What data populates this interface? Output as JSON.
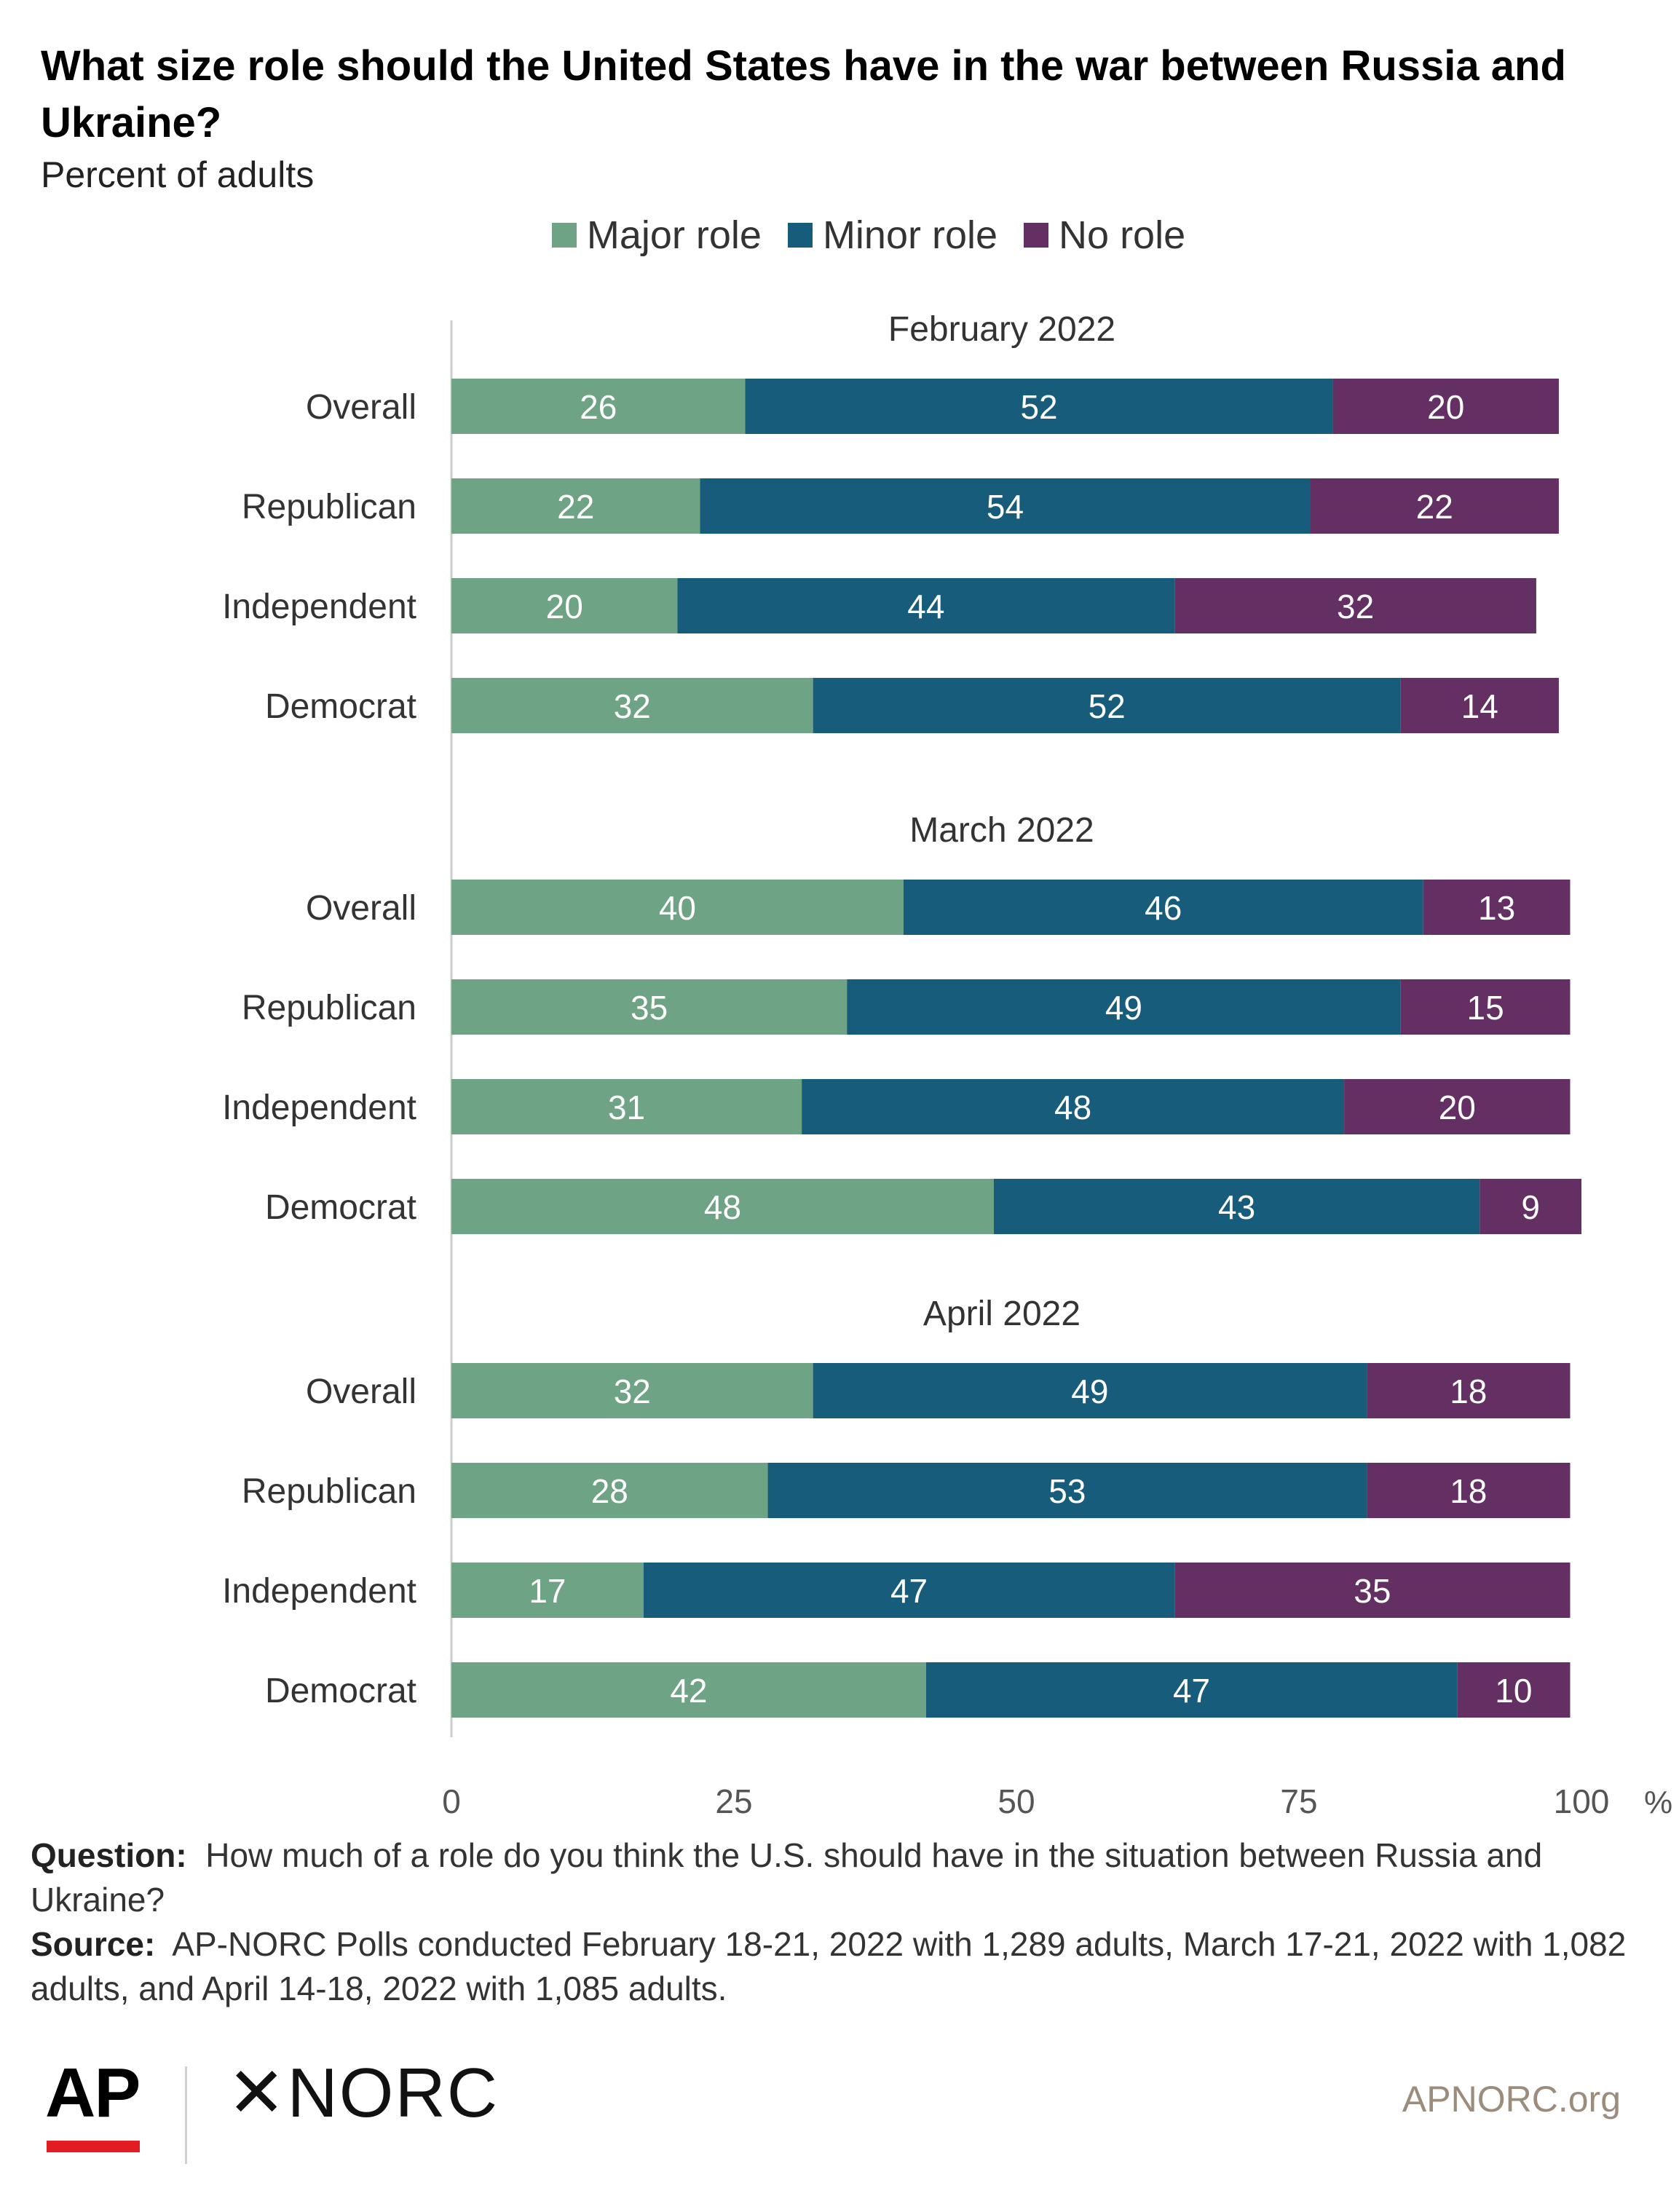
{
  "header": {
    "title": "What size role should the United States have in the war between Russia and Ukraine?",
    "subtitle": "Percent of adults"
  },
  "colors": {
    "major": "#6fa386",
    "minor": "#175c7b",
    "none": "#642f62",
    "axis": "#cccccc",
    "bar_label": "#ffffff"
  },
  "chart_data": {
    "type": "bar",
    "orientation": "horizontal",
    "stacked": true,
    "legend_position": "top-center",
    "xlim": [
      0,
      100
    ],
    "x_ticks": [
      "0",
      "25",
      "50",
      "75",
      "100"
    ],
    "x_unit": "%",
    "legend": [
      "Major role",
      "Minor role",
      "No role"
    ],
    "groups": [
      {
        "label": "February 2022",
        "categories": [
          "Overall",
          "Republican",
          "Independent",
          "Democrat"
        ],
        "series": [
          {
            "name": "Major role",
            "values": [
              26,
              22,
              20,
              32
            ]
          },
          {
            "name": "Minor role",
            "values": [
              52,
              54,
              44,
              52
            ]
          },
          {
            "name": "No role",
            "values": [
              20,
              22,
              32,
              14
            ]
          }
        ]
      },
      {
        "label": "March 2022",
        "categories": [
          "Overall",
          "Republican",
          "Independent",
          "Democrat"
        ],
        "series": [
          {
            "name": "Major role",
            "values": [
              40,
              35,
              31,
              48
            ]
          },
          {
            "name": "Minor role",
            "values": [
              46,
              49,
              48,
              43
            ]
          },
          {
            "name": "No role",
            "values": [
              13,
              15,
              20,
              9
            ]
          }
        ]
      },
      {
        "label": "April 2022",
        "categories": [
          "Overall",
          "Republican",
          "Independent",
          "Democrat"
        ],
        "series": [
          {
            "name": "Major role",
            "values": [
              32,
              28,
              17,
              42
            ]
          },
          {
            "name": "Minor role",
            "values": [
              49,
              53,
              47,
              47
            ]
          },
          {
            "name": "No role",
            "values": [
              18,
              18,
              35,
              10
            ]
          }
        ]
      }
    ]
  },
  "notes": {
    "question_label": "Question:",
    "question_text": "How much of a role do you think the U.S. should have in the situation between Russia and Ukraine?",
    "source_label": "Source:",
    "source_text": "AP-NORC Polls conducted February 18-21, 2022 with 1,289 adults, March 17-21, 2022 with 1,082 adults, and April 14-18, 2022 with 1,085 adults."
  },
  "footer": {
    "ap_logo": "AP",
    "norc_logo": "✕NORC",
    "site": "APNORC.org"
  }
}
